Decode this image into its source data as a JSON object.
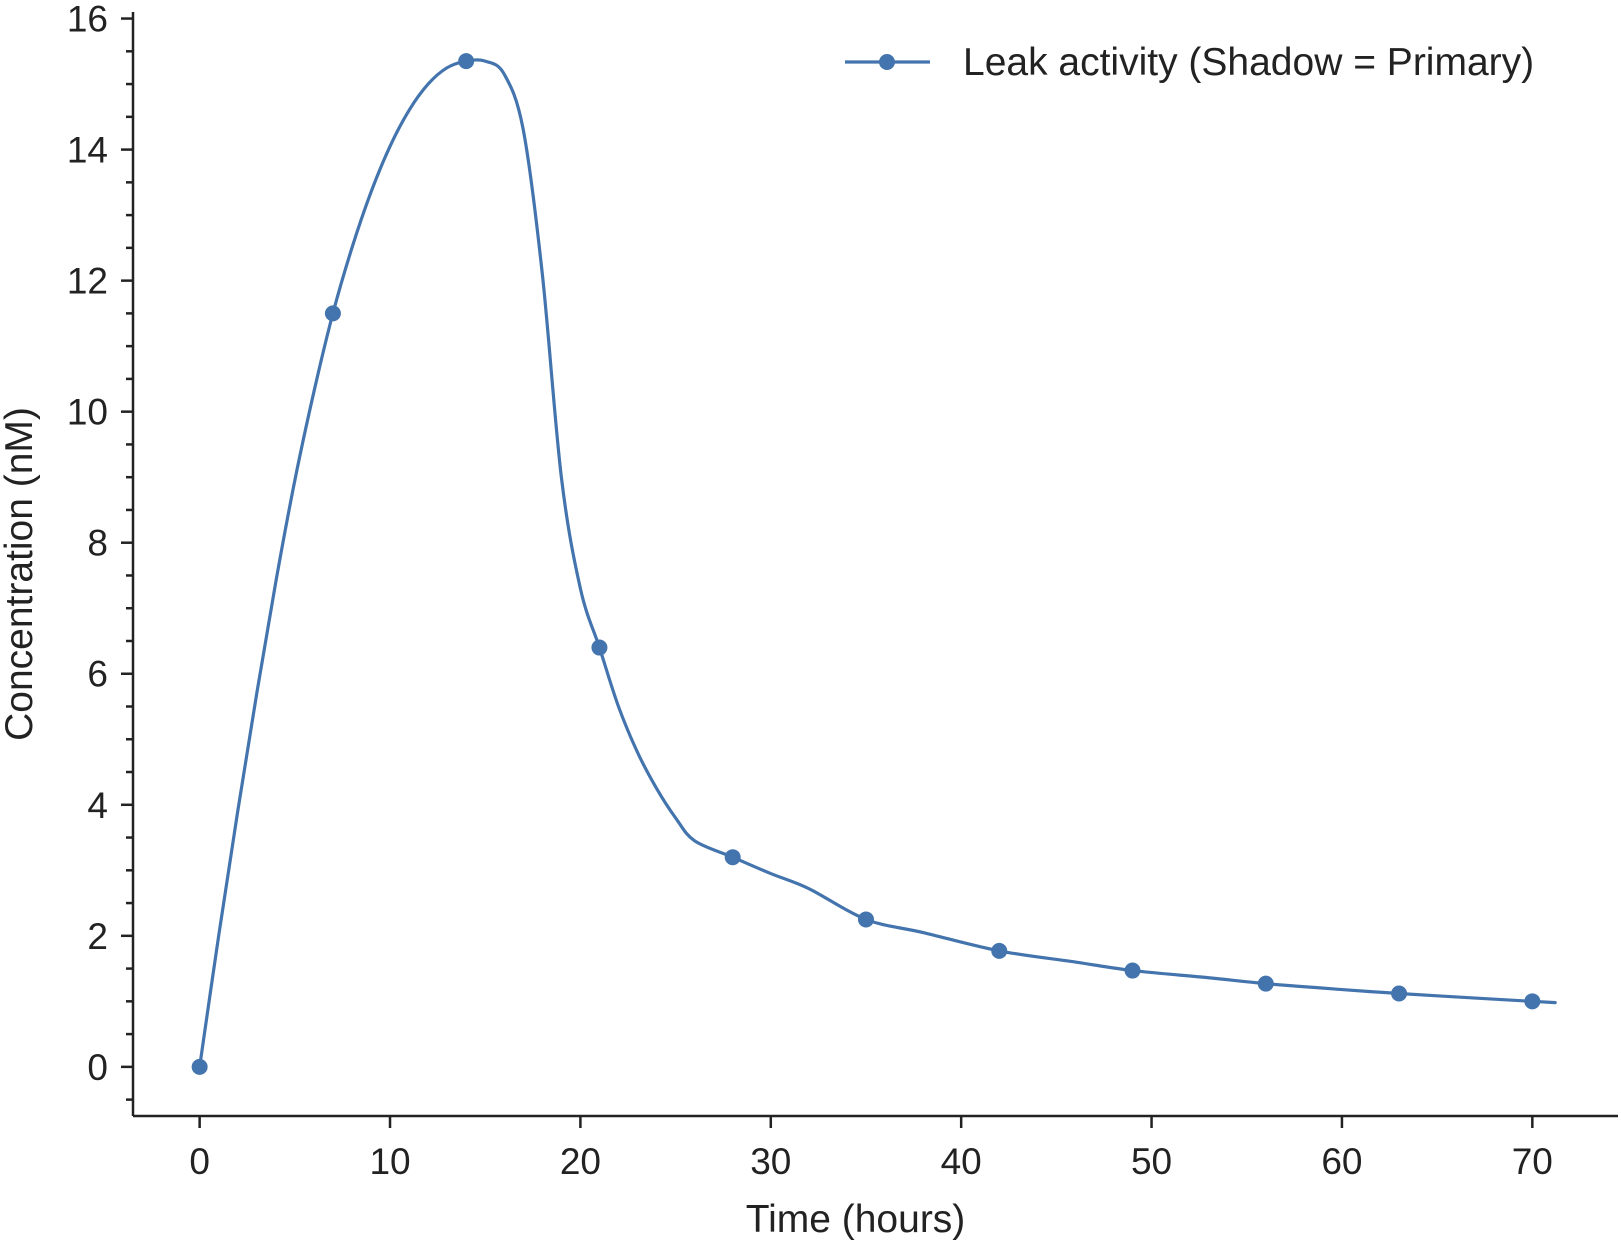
{
  "chart_data": {
    "type": "line",
    "xlabel": "Time (hours)",
    "ylabel": "Concentration (nM)",
    "xlim": [
      -3.5,
      74.5
    ],
    "ylim": [
      -0.75,
      16.1
    ],
    "x_ticks": [
      0,
      10,
      20,
      30,
      40,
      50,
      60,
      70
    ],
    "y_ticks": [
      0,
      2,
      4,
      6,
      8,
      10,
      12,
      14,
      16
    ],
    "y_minor_step": 0.5,
    "grid": false,
    "legend_position": "top-right",
    "series": [
      {
        "name": "Leak activity (Shadow =  Primary)",
        "color": "#4474ad",
        "marker": "circle",
        "x": [
          0,
          7,
          14,
          21,
          28,
          35,
          42,
          49,
          56,
          63,
          70
        ],
        "y": [
          0,
          11.5,
          15.35,
          6.4,
          3.2,
          2.25,
          1.77,
          1.47,
          1.27,
          1.12,
          1.0
        ],
        "curve_x": [
          0,
          1,
          2,
          3,
          4,
          5,
          6,
          7,
          8,
          9,
          10,
          11,
          12,
          13,
          14,
          15,
          16,
          17,
          18,
          19,
          20,
          21,
          22,
          23,
          24,
          25,
          26,
          28,
          30,
          32,
          35,
          38,
          42,
          46,
          49,
          53,
          56,
          60,
          63,
          67,
          70,
          71.2
        ],
        "curve_y": [
          0,
          2.0,
          3.9,
          5.7,
          7.4,
          8.95,
          10.3,
          11.5,
          12.5,
          13.35,
          14.05,
          14.6,
          15.0,
          15.25,
          15.35,
          15.35,
          15.15,
          14.3,
          12.1,
          9.0,
          7.3,
          6.4,
          5.5,
          4.8,
          4.25,
          3.8,
          3.45,
          3.2,
          2.95,
          2.72,
          2.25,
          2.05,
          1.77,
          1.6,
          1.47,
          1.36,
          1.27,
          1.18,
          1.12,
          1.05,
          1.0,
          0.98
        ]
      }
    ]
  }
}
